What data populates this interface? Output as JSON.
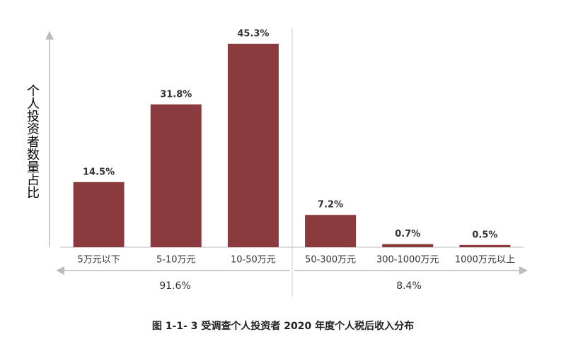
{
  "chart_data": {
    "type": "bar",
    "title": "图 1-1- 3 受调查个人投资者 2020 年度个人税后收入分布",
    "y_label": "个人投资者数量占比",
    "categories": [
      "5万元以下",
      "5-10万元",
      "10-50万元",
      "50-300万元",
      "300-1000万元",
      "1000万元以上"
    ],
    "values": [
      14.5,
      31.8,
      45.3,
      7.2,
      0.7,
      0.5
    ],
    "value_labels": [
      "14.5%",
      "31.8%",
      "45.3%",
      "7.2%",
      "0.7%",
      "0.5%"
    ],
    "color": "#8b3a3e",
    "ylim": [
      0,
      50
    ],
    "groups": [
      {
        "value": 91.6,
        "label": "91.6%"
      },
      {
        "value": 8.4,
        "label": "8.4%"
      }
    ]
  }
}
